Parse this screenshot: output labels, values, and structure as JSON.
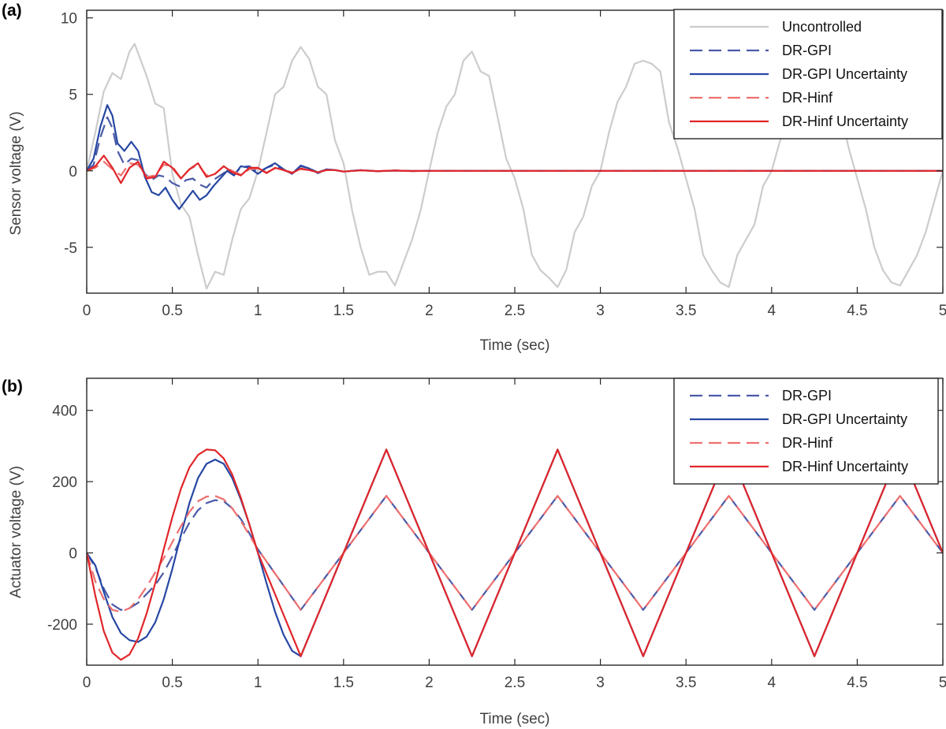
{
  "chart_data": [
    {
      "panel_label": "(a)",
      "type": "line",
      "xlabel": "Time (sec)",
      "ylabel": "Sensor voltage (V)",
      "xlim": [
        0,
        5
      ],
      "ylim": [
        -8,
        10.5
      ],
      "xticks": [
        0,
        0.5,
        1,
        1.5,
        2,
        2.5,
        3,
        3.5,
        4,
        4.5,
        5
      ],
      "xtick_labels": [
        "0",
        "0.5",
        "1",
        "1.5",
        "2",
        "2.5",
        "3",
        "3.5",
        "4",
        "4.5",
        "5"
      ],
      "yticks": [
        -5,
        0,
        5,
        10
      ],
      "ytick_labels": [
        "-5",
        "0",
        "5",
        "10"
      ],
      "grid": false,
      "legend_position": "top-right",
      "series": [
        {
          "name": "Uncontrolled",
          "color": "#cccccc",
          "style": "solid",
          "x": [
            0,
            0.05,
            0.1,
            0.15,
            0.2,
            0.25,
            0.28,
            0.35,
            0.4,
            0.45,
            0.5,
            0.55,
            0.6,
            0.65,
            0.7,
            0.75,
            0.8,
            0.85,
            0.9,
            0.95,
            1.0,
            1.05,
            1.1,
            1.15,
            1.2,
            1.25,
            1.3,
            1.35,
            1.4,
            1.45,
            1.5,
            1.55,
            1.6,
            1.65,
            1.7,
            1.75,
            1.8,
            1.85,
            1.9,
            1.95,
            2.0,
            2.05,
            2.1,
            2.15,
            2.2,
            2.25,
            2.3,
            2.35,
            2.4,
            2.45,
            2.5,
            2.55,
            2.6,
            2.65,
            2.7,
            2.75,
            2.8,
            2.85,
            2.9,
            2.95,
            3.0,
            3.05,
            3.1,
            3.15,
            3.2,
            3.25,
            3.3,
            3.35,
            3.4,
            3.45,
            3.5,
            3.55,
            3.6,
            3.65,
            3.7,
            3.75,
            3.8,
            3.85,
            3.9,
            3.95,
            4.0,
            4.05,
            4.1,
            4.15,
            4.2,
            4.25,
            4.3,
            4.35,
            4.4,
            4.45,
            4.5,
            4.55,
            4.6,
            4.65,
            4.7,
            4.75,
            4.8,
            4.85,
            4.9,
            4.95,
            5.0
          ],
          "y": [
            0,
            2.5,
            5.2,
            6.4,
            6.0,
            7.8,
            8.3,
            6.2,
            4.4,
            4.1,
            -0.2,
            -2.2,
            -3.0,
            -5.5,
            -7.7,
            -6.6,
            -6.8,
            -4.5,
            -2.5,
            -1.8,
            0.0,
            2.5,
            5.0,
            5.5,
            7.2,
            8.1,
            7.3,
            5.5,
            5.0,
            2.0,
            0.5,
            -2.6,
            -5.0,
            -6.8,
            -6.6,
            -6.6,
            -7.5,
            -6.0,
            -4.5,
            -2.6,
            0.0,
            2.5,
            4.2,
            5.0,
            7.2,
            7.8,
            6.5,
            6.2,
            3.5,
            0.8,
            -0.5,
            -2.5,
            -5.5,
            -6.5,
            -7.0,
            -7.6,
            -6.5,
            -4.0,
            -3.0,
            -1.0,
            0.0,
            2.5,
            4.5,
            5.5,
            7.0,
            7.2,
            7.0,
            6.5,
            3.2,
            1.5,
            -0.5,
            -2.5,
            -5.5,
            -6.5,
            -7.3,
            -7.6,
            -5.5,
            -4.5,
            -3.5,
            -1.0,
            0.0,
            2.0,
            3.5,
            5.5,
            7.0,
            7.5,
            7.0,
            6.5,
            4.0,
            1.5,
            -0.5,
            -2.5,
            -5.0,
            -6.5,
            -7.3,
            -7.5,
            -6.5,
            -5.5,
            -4.0,
            -2.0,
            0.0
          ]
        },
        {
          "name": "DR-GPI",
          "color": "#4a5aa8",
          "style": "dashed",
          "x": [
            0,
            0.04,
            0.08,
            0.12,
            0.15,
            0.18,
            0.22,
            0.26,
            0.3,
            0.34,
            0.38,
            0.42,
            0.46,
            0.5,
            0.54,
            0.58,
            0.62,
            0.66,
            0.7,
            0.74,
            0.78,
            0.82,
            0.86,
            0.9,
            0.95,
            1.0,
            1.05,
            1.1,
            1.15,
            1.2,
            1.25,
            1.3,
            1.35,
            1.4,
            1.45,
            1.5,
            1.6,
            1.7,
            1.8,
            1.9,
            2.0,
            2.5,
            3.0,
            3.5,
            4.0,
            4.5,
            5.0
          ],
          "y": [
            0,
            0.4,
            2.2,
            3.5,
            2.8,
            1.3,
            0.4,
            0.8,
            0.7,
            -0.2,
            -0.6,
            -0.3,
            -0.4,
            -0.8,
            -1.0,
            -0.6,
            -0.5,
            -0.9,
            -1.1,
            -0.6,
            -0.3,
            0.0,
            -0.3,
            0.25,
            0.3,
            -0.1,
            0.2,
            0.4,
            0.05,
            -0.15,
            0.3,
            0.15,
            -0.1,
            0.1,
            0.05,
            -0.05,
            0.05,
            -0.03,
            0.02,
            -0.01,
            0.0,
            0.0,
            0.0,
            0.0,
            0.0,
            0.0,
            0.0
          ]
        },
        {
          "name": "DR-GPI Uncertainty",
          "color": "#2747a3",
          "style": "solid",
          "x": [
            0,
            0.04,
            0.08,
            0.12,
            0.15,
            0.18,
            0.22,
            0.26,
            0.3,
            0.34,
            0.38,
            0.42,
            0.46,
            0.5,
            0.54,
            0.58,
            0.62,
            0.66,
            0.7,
            0.74,
            0.78,
            0.82,
            0.86,
            0.9,
            0.95,
            1.0,
            1.05,
            1.1,
            1.15,
            1.2,
            1.25,
            1.3,
            1.35,
            1.4,
            1.45,
            1.5,
            1.6,
            1.7,
            1.8,
            1.9,
            2.0,
            2.5,
            3.0,
            3.5,
            4.0,
            4.5,
            5.0
          ],
          "y": [
            0,
            0.8,
            2.9,
            4.3,
            3.6,
            1.8,
            1.3,
            1.9,
            1.3,
            -0.4,
            -1.4,
            -1.6,
            -1.1,
            -1.9,
            -2.5,
            -1.9,
            -1.3,
            -1.9,
            -1.6,
            -1.0,
            -0.5,
            0.0,
            -0.3,
            0.3,
            0.2,
            -0.2,
            0.2,
            0.5,
            0.1,
            -0.2,
            0.35,
            0.15,
            -0.15,
            0.1,
            0.05,
            -0.05,
            0.05,
            -0.03,
            0.02,
            -0.01,
            0.0,
            0.0,
            0.0,
            0.0,
            0.0,
            0.0,
            0.0
          ]
        },
        {
          "name": "DR-Hinf",
          "color": "#ee6f6f",
          "style": "dashed",
          "x": [
            0,
            0.05,
            0.1,
            0.15,
            0.2,
            0.25,
            0.3,
            0.35,
            0.4,
            0.45,
            0.5,
            0.55,
            0.6,
            0.65,
            0.7,
            0.75,
            0.8,
            0.85,
            0.9,
            0.95,
            1.0,
            1.05,
            1.1,
            1.15,
            1.2,
            1.25,
            1.3,
            1.35,
            1.4,
            1.45,
            1.5,
            1.6,
            1.7,
            1.8,
            1.9,
            2.0,
            2.5,
            3.0,
            3.5,
            4.0,
            4.5,
            5.0
          ],
          "y": [
            0,
            0.2,
            0.6,
            0.1,
            -0.3,
            0.5,
            0.4,
            -0.4,
            -0.3,
            0.4,
            0.3,
            -0.5,
            0.1,
            0.4,
            -0.3,
            -0.2,
            0.3,
            0.0,
            -0.25,
            0.1,
            0.15,
            -0.1,
            0.15,
            0.05,
            -0.1,
            0.1,
            0.05,
            -0.1,
            0.05,
            0.05,
            -0.05,
            0.03,
            -0.02,
            0.02,
            -0.01,
            0.0,
            0.0,
            0.0,
            0.0,
            0.0,
            0.0,
            0.0
          ]
        },
        {
          "name": "DR-Hinf Uncertainty",
          "color": "#e0262a",
          "style": "solid",
          "x": [
            0,
            0.05,
            0.1,
            0.15,
            0.2,
            0.25,
            0.3,
            0.35,
            0.4,
            0.45,
            0.5,
            0.55,
            0.6,
            0.65,
            0.7,
            0.75,
            0.8,
            0.85,
            0.9,
            0.95,
            1.0,
            1.05,
            1.1,
            1.15,
            1.2,
            1.25,
            1.3,
            1.35,
            1.4,
            1.45,
            1.5,
            1.6,
            1.7,
            1.8,
            1.9,
            2.0,
            2.5,
            3.0,
            3.5,
            4.0,
            4.5,
            5.0
          ],
          "y": [
            0,
            0.3,
            1.0,
            0.2,
            -0.8,
            0.2,
            0.6,
            -0.5,
            -0.4,
            0.6,
            0.2,
            -0.5,
            0.1,
            0.5,
            -0.4,
            -0.2,
            0.3,
            -0.1,
            -0.3,
            0.2,
            0.2,
            -0.15,
            0.2,
            0.05,
            -0.15,
            0.15,
            0.05,
            -0.1,
            0.05,
            0.05,
            -0.05,
            0.03,
            -0.02,
            0.02,
            -0.01,
            0.0,
            0.0,
            0.0,
            0.0,
            0.0,
            0.0,
            0.0
          ]
        }
      ]
    },
    {
      "panel_label": "(b)",
      "type": "line",
      "xlabel": "Time (sec)",
      "ylabel": "Actuator voltage (V)",
      "xlim": [
        0,
        5
      ],
      "ylim": [
        -315,
        490
      ],
      "xticks": [
        0,
        0.5,
        1,
        1.5,
        2,
        2.5,
        3,
        3.5,
        4,
        4.5,
        5
      ],
      "xtick_labels": [
        "0",
        "0.5",
        "1",
        "1.5",
        "2",
        "2.5",
        "3",
        "3.5",
        "4",
        "4.5",
        "5"
      ],
      "yticks": [
        -200,
        0,
        200,
        400
      ],
      "ytick_labels": [
        "-200",
        "0",
        "200",
        "400"
      ],
      "grid": false,
      "legend_position": "top-right",
      "series": [
        {
          "name": "DR-GPI",
          "color": "#4a5aa8",
          "style": "dashed",
          "x": [
            0,
            0.05,
            0.1,
            0.15,
            0.2,
            0.25,
            0.3,
            0.35,
            0.4,
            0.45,
            0.5,
            0.55,
            0.6,
            0.65,
            0.7,
            0.75,
            0.8,
            0.85,
            0.9,
            0.95,
            1.0,
            1.25,
            1.5,
            1.75,
            2.0,
            2.25,
            2.5,
            2.75,
            3.0,
            3.25,
            3.5,
            3.75,
            4.0,
            4.25,
            4.5,
            4.75,
            5.0
          ],
          "y": [
            0,
            -40,
            -100,
            -145,
            -160,
            -155,
            -140,
            -115,
            -90,
            -55,
            -10,
            40,
            85,
            120,
            140,
            148,
            145,
            125,
            95,
            55,
            10,
            -160,
            0,
            160,
            0,
            -160,
            0,
            160,
            0,
            -160,
            0,
            160,
            0,
            -160,
            0,
            160,
            0
          ]
        },
        {
          "name": "DR-GPI Uncertainty",
          "color": "#2747a3",
          "style": "solid",
          "x": [
            0,
            0.05,
            0.1,
            0.15,
            0.2,
            0.25,
            0.3,
            0.35,
            0.4,
            0.45,
            0.5,
            0.55,
            0.6,
            0.65,
            0.7,
            0.75,
            0.8,
            0.85,
            0.9,
            0.95,
            1.0,
            1.05,
            1.1,
            1.15,
            1.2,
            1.25,
            1.5,
            1.75,
            2.0,
            2.25,
            2.5,
            2.75,
            3.0,
            3.25,
            3.5,
            3.75,
            4.0,
            4.25,
            4.5,
            4.75,
            5.0
          ],
          "y": [
            0,
            -35,
            -110,
            -180,
            -225,
            -245,
            -250,
            -235,
            -195,
            -130,
            -45,
            50,
            140,
            210,
            250,
            262,
            250,
            210,
            150,
            80,
            0,
            -85,
            -165,
            -230,
            -275,
            -290,
            0,
            290,
            0,
            -290,
            0,
            290,
            0,
            -290,
            0,
            290,
            0,
            -290,
            0,
            290,
            0
          ]
        },
        {
          "name": "DR-Hinf",
          "color": "#ee6f6f",
          "style": "dashed",
          "x": [
            0,
            0.05,
            0.1,
            0.15,
            0.2,
            0.25,
            0.3,
            0.35,
            0.4,
            0.45,
            0.5,
            0.55,
            0.6,
            0.65,
            0.7,
            0.75,
            0.8,
            0.85,
            0.9,
            0.95,
            1.0,
            1.25,
            1.5,
            1.75,
            2.0,
            2.25,
            2.5,
            2.75,
            3.0,
            3.25,
            3.5,
            3.75,
            4.0,
            4.25,
            4.5,
            4.75,
            5.0
          ],
          "y": [
            0,
            -80,
            -130,
            -160,
            -165,
            -155,
            -130,
            -95,
            -55,
            -15,
            30,
            75,
            115,
            145,
            158,
            160,
            150,
            125,
            90,
            50,
            10,
            -160,
            0,
            160,
            0,
            -160,
            0,
            160,
            0,
            -160,
            0,
            160,
            0,
            -160,
            0,
            160,
            0
          ]
        },
        {
          "name": "DR-Hinf Uncertainty",
          "color": "#e0262a",
          "style": "solid",
          "x": [
            0,
            0.05,
            0.1,
            0.15,
            0.2,
            0.25,
            0.3,
            0.35,
            0.4,
            0.45,
            0.5,
            0.55,
            0.6,
            0.65,
            0.7,
            0.75,
            0.8,
            0.85,
            0.9,
            0.95,
            1.0,
            1.25,
            1.5,
            1.75,
            2.0,
            2.25,
            2.5,
            2.75,
            3.0,
            3.25,
            3.5,
            3.75,
            4.0,
            4.25,
            4.5,
            4.75,
            5.0
          ],
          "y": [
            0,
            -120,
            -220,
            -280,
            -300,
            -285,
            -240,
            -170,
            -85,
            10,
            100,
            180,
            240,
            275,
            290,
            288,
            265,
            220,
            155,
            80,
            0,
            -290,
            0,
            290,
            0,
            -290,
            0,
            290,
            0,
            -290,
            0,
            290,
            0,
            -290,
            0,
            290,
            0
          ]
        }
      ]
    }
  ]
}
